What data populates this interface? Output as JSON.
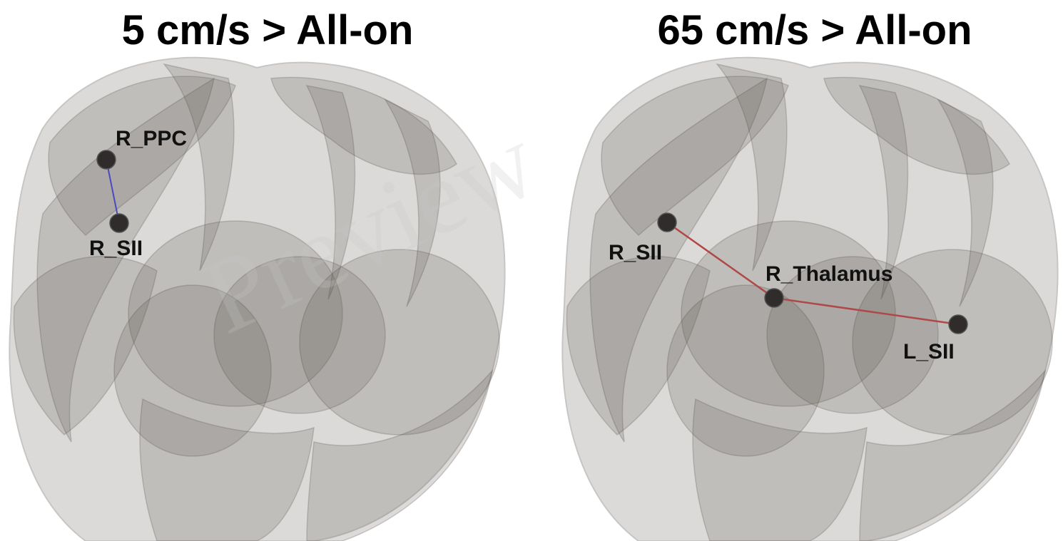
{
  "panels": [
    {
      "title": "5 cm/s > All-on",
      "nodes": [
        {
          "label": "R_PPC"
        },
        {
          "label": "R_SII"
        }
      ]
    },
    {
      "title": "65 cm/s > All-on",
      "nodes": [
        {
          "label": "R_SII"
        },
        {
          "label": "R_Thalamus"
        },
        {
          "label": "L_SII"
        }
      ]
    }
  ],
  "watermark": "Preview"
}
